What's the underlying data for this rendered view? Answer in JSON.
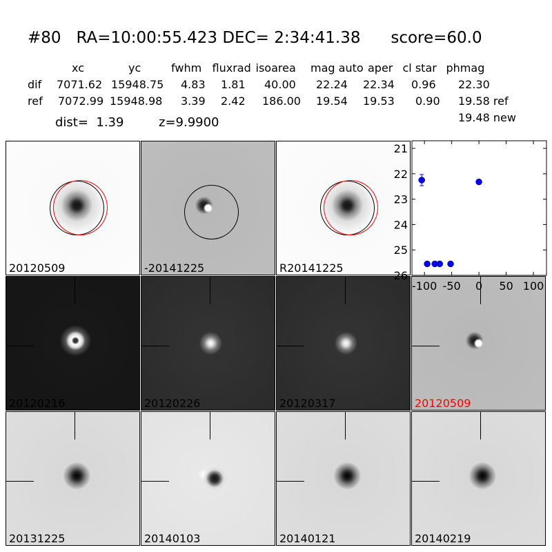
{
  "title": "#80   RA=10:00:55.423 DEC= 2:34:41.38      score=60.0",
  "table": {
    "columns": [
      "xc",
      "yc",
      "fwhm",
      "fluxrad",
      "isoarea",
      "mag auto",
      "aper",
      "cl star",
      "phmag"
    ],
    "rows": [
      {
        "label": "dif",
        "values": [
          "7071.62",
          "15948.75",
          "4.83",
          "1.81",
          "40.00",
          "22.24",
          "22.34",
          "0.96",
          "22.30"
        ]
      },
      {
        "label": "ref",
        "values": [
          "7072.99",
          "15948.98",
          "3.39",
          "2.42",
          "186.00",
          "19.54",
          "19.53",
          "0.90",
          "19.58 ref"
        ]
      }
    ],
    "extra": "19.48 new",
    "dist": "dist=  1.39",
    "z": "z=9.9900"
  },
  "panels": [
    {
      "label": "20120509",
      "style": "white",
      "circles": true
    },
    {
      "label": "-20141225",
      "style": "diff",
      "circles": "black"
    },
    {
      "label": "R20141225",
      "style": "white",
      "circles": true
    },
    {
      "label": "20120216",
      "style": "dark"
    },
    {
      "label": "20120226",
      "style": "dark2"
    },
    {
      "label": "20120317",
      "style": "dark2"
    },
    {
      "label": "20120509",
      "style": "diff",
      "label_color": "#ff0000"
    },
    {
      "label": "20131225",
      "style": "light"
    },
    {
      "label": "20140103",
      "style": "diff2"
    },
    {
      "label": "20140121",
      "style": "light"
    },
    {
      "label": "20140219",
      "style": "light"
    }
  ],
  "chart_data": {
    "type": "scatter",
    "x": [
      -105,
      -95,
      -81,
      -72,
      -52,
      0
    ],
    "y": [
      22.25,
      25.55,
      25.55,
      25.55,
      25.55,
      22.32
    ],
    "yerr": [
      0.22,
      0.05,
      0.05,
      0.05,
      0.05,
      0.05
    ],
    "xlim": [
      -123,
      124
    ],
    "ylim": [
      26,
      20.7
    ],
    "y_inverted": true,
    "xticks": [
      "-100",
      "-50",
      "0",
      "50",
      "100"
    ],
    "yticks": [
      "21",
      "22",
      "23",
      "24",
      "25",
      "26"
    ],
    "color": "#0000ff"
  }
}
